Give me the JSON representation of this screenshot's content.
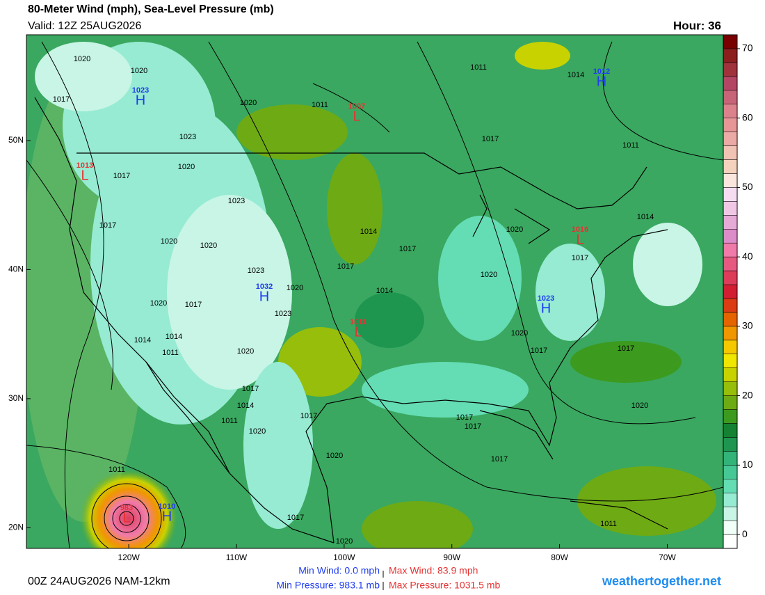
{
  "header": {
    "title": "80-Meter Wind (mph), Sea-Level Pressure (mb)",
    "valid": "Valid: 12Z 25AUG2026",
    "hour": "Hour: 36"
  },
  "map": {
    "xlim": [
      -129.5,
      -64.8
    ],
    "ylim": [
      18.4,
      58.2
    ],
    "xticks": [
      {
        "value": -120,
        "label": "120W"
      },
      {
        "value": -110,
        "label": "110W"
      },
      {
        "value": -100,
        "label": "100W"
      },
      {
        "value": -90,
        "label": "90W"
      },
      {
        "value": -80,
        "label": "80W"
      },
      {
        "value": -70,
        "label": "70W"
      }
    ],
    "yticks": [
      {
        "value": 20,
        "label": "20N"
      },
      {
        "value": 30,
        "label": "30N"
      },
      {
        "value": 40,
        "label": "40N"
      },
      {
        "value": 50,
        "label": "50N"
      }
    ],
    "pressure_centers": [
      {
        "type": "H",
        "value": 1023
      },
      {
        "type": "L",
        "value": 1007
      },
      {
        "type": "L",
        "value": 1013
      },
      {
        "type": "H",
        "value": 1032
      },
      {
        "type": "L",
        "value": 1011
      },
      {
        "type": "L",
        "value": 1016
      },
      {
        "type": "H",
        "value": 1023
      },
      {
        "type": "H",
        "value": 1012
      },
      {
        "type": "H",
        "value": 1010
      },
      {
        "type": "L",
        "value": 983
      }
    ],
    "isobar_labels": [
      1020,
      1020,
      1017,
      1020,
      1011,
      1011,
      1014,
      1023,
      1017,
      1011,
      1020,
      1017,
      1023,
      1017,
      1020,
      1020,
      1014,
      1017,
      1020,
      1014,
      1017,
      1023,
      1017,
      1020,
      1020,
      1014,
      1020,
      1017,
      1023,
      1014,
      1014,
      1011,
      1020,
      1020,
      1017,
      1017,
      1017,
      1014,
      1011,
      1017,
      1020,
      1017,
      1017,
      1020,
      1020,
      1017,
      1011,
      1017,
      1020,
      1011
    ]
  },
  "colorbar": {
    "lim": [
      -2,
      72
    ],
    "ticks": [
      0,
      10,
      20,
      30,
      40,
      50,
      60,
      70
    ],
    "colors": [
      "#ffffff",
      "#f0fff8",
      "#c8f5e6",
      "#96ebd2",
      "#64dcb4",
      "#46c896",
      "#32b478",
      "#1e9650",
      "#148232",
      "#3c9a1e",
      "#6eaa14",
      "#96be0a",
      "#c8d200",
      "#f0e600",
      "#f5c800",
      "#f09600",
      "#e66400",
      "#dc3c14",
      "#d21e32",
      "#dc3c5a",
      "#e65a82",
      "#f07aaa",
      "#dc8cc8",
      "#e6aad7",
      "#f0c8e6",
      "#f5dcf0",
      "#fae6dc",
      "#f5d2be",
      "#f0c3b4",
      "#ebaaa5",
      "#e69696",
      "#dc828c",
      "#c86478",
      "#b44664",
      "#a0323c",
      "#8c1e1e",
      "#780000"
    ]
  },
  "footer": {
    "run": "00Z 24AUG2026 NAM-12km",
    "min_wind": "Min Wind:  0.0 mph",
    "max_wind": "Max Wind:  83.9 mph",
    "min_pressure": "Min Pressure: 983.1 mb",
    "max_pressure": "Max Pressure: 1031.5 mb",
    "site": "weathertogether.net"
  }
}
